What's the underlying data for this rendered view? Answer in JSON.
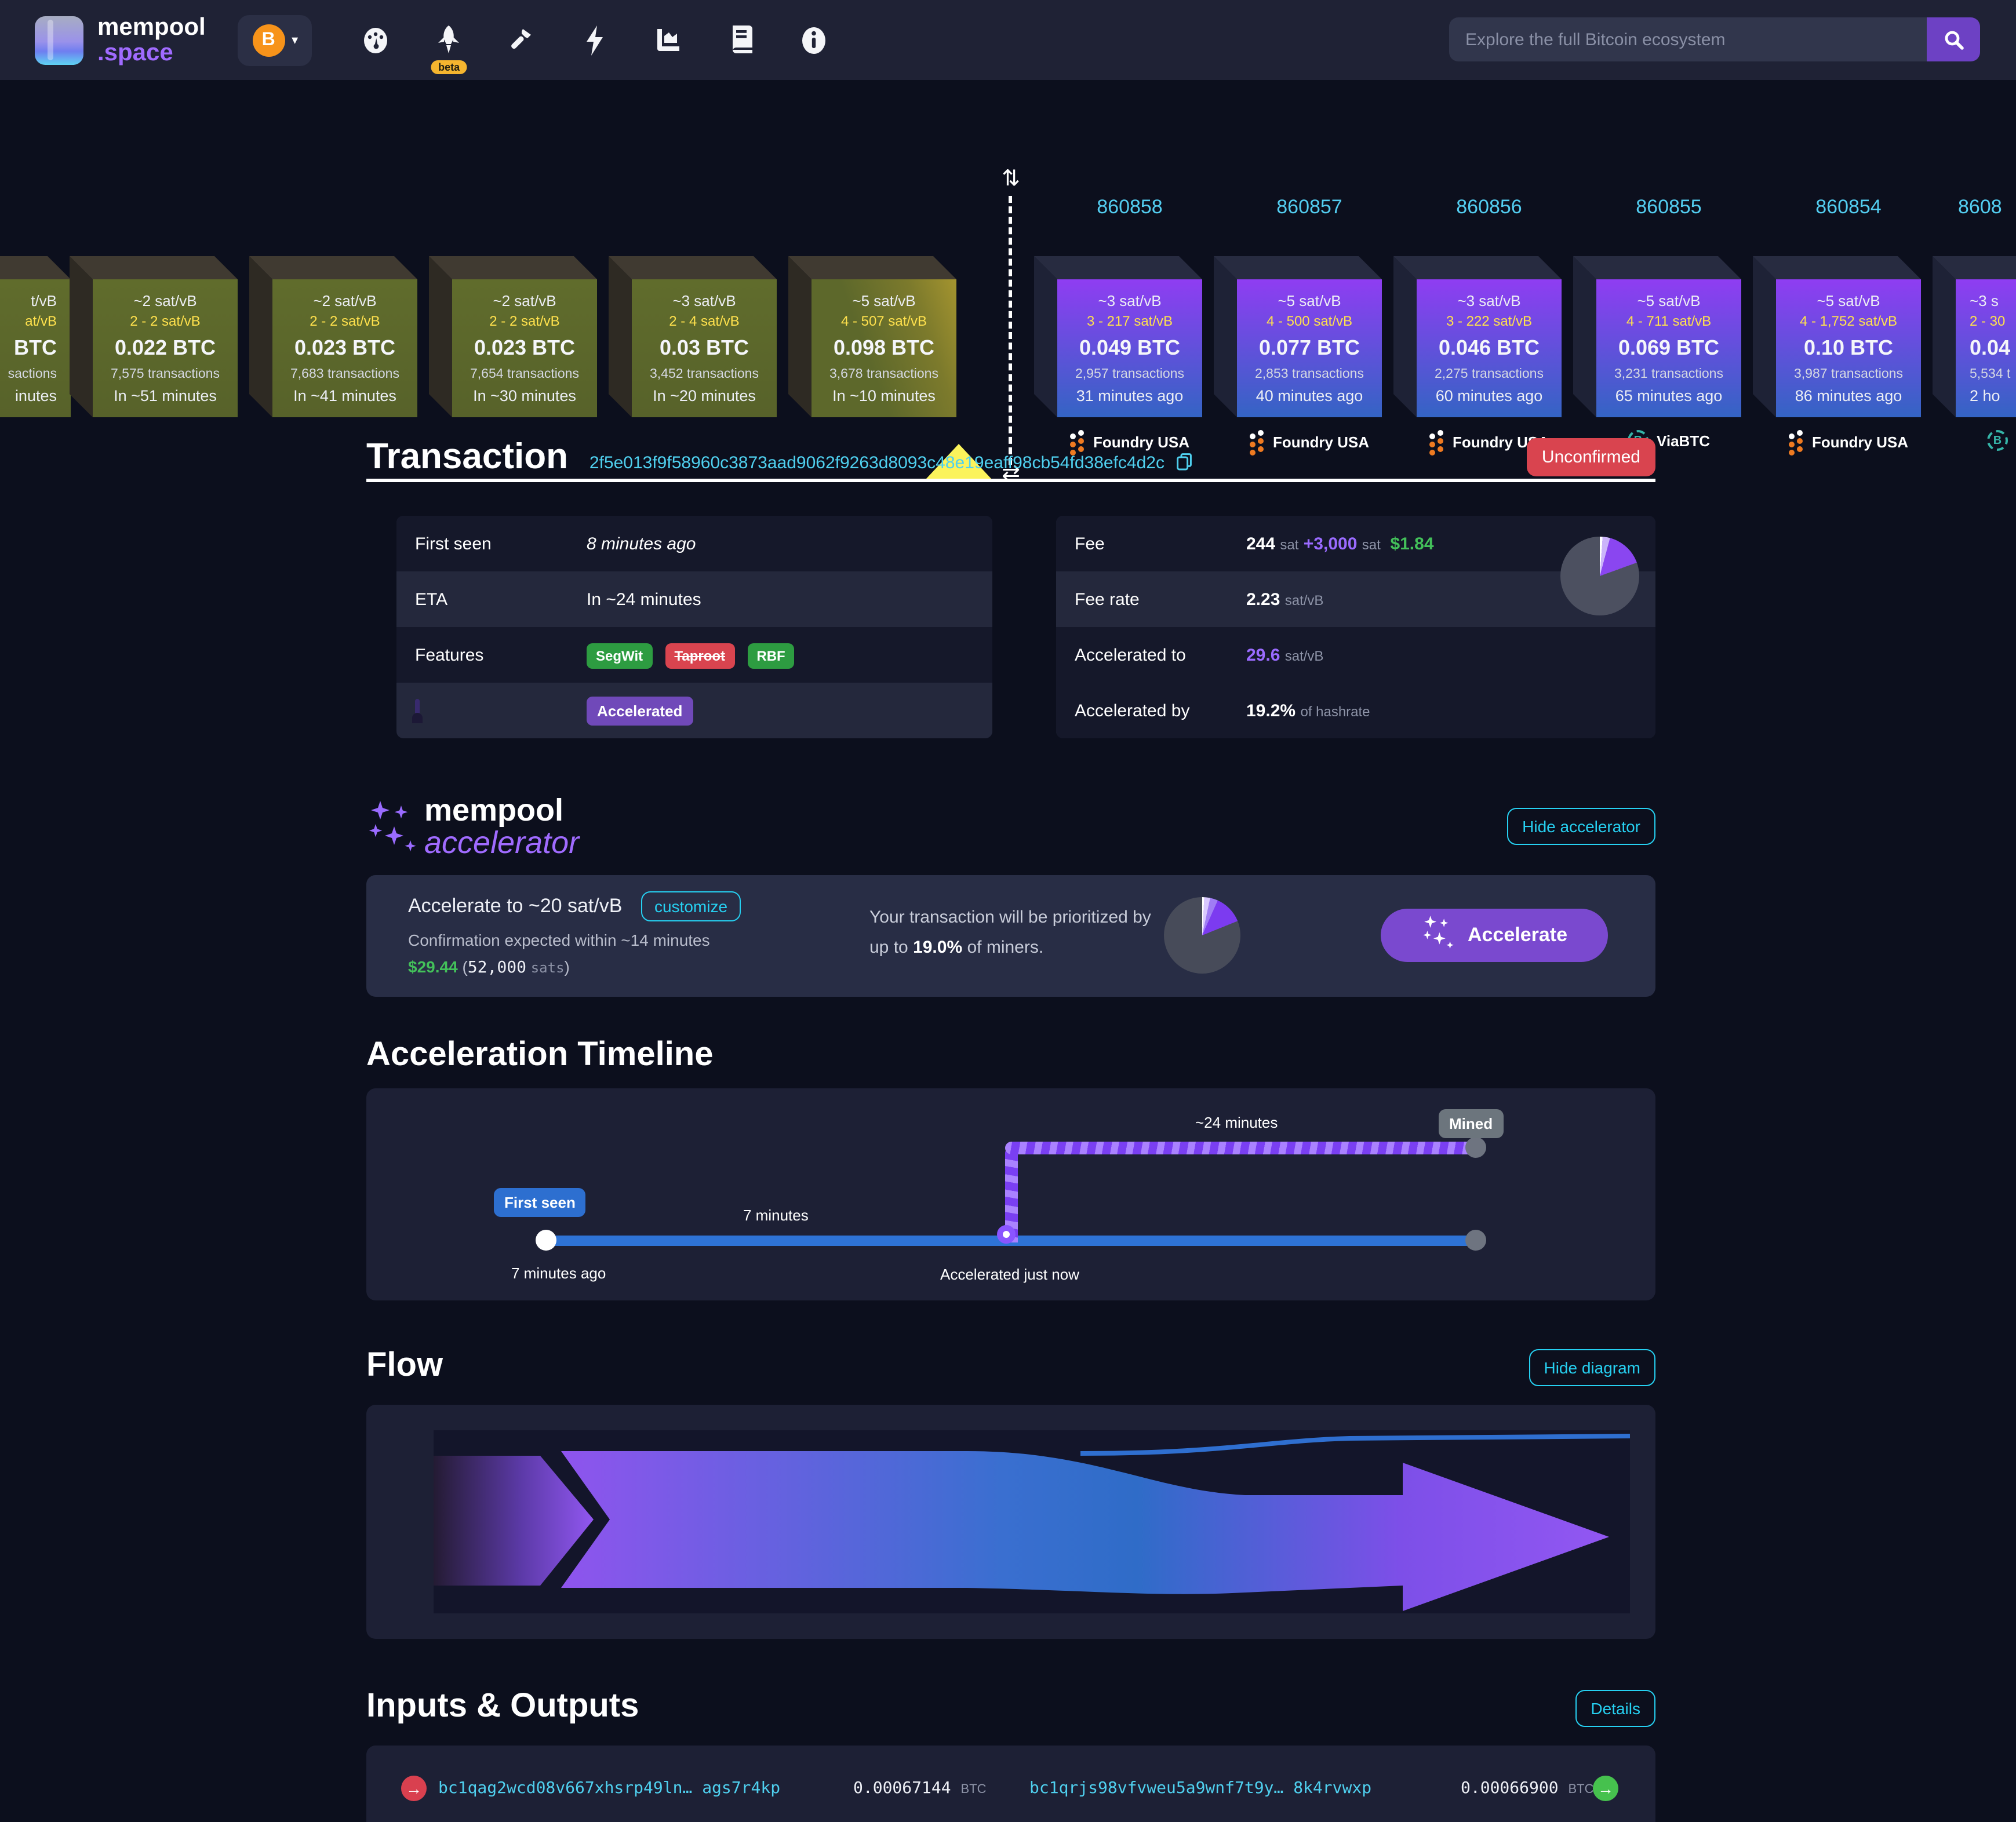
{
  "navbar": {
    "brand": {
      "top": "mempool",
      "bottom": ".space"
    },
    "network_symbol": "B",
    "beta_label": "beta",
    "nav_icons": [
      "gauge-icon",
      "rocket-icon",
      "hammer-icon",
      "lightning-icon",
      "chart-icon",
      "docs-icon",
      "info-icon"
    ],
    "search": {
      "placeholder": "Explore the full Bitcoin ecosystem"
    }
  },
  "blockchain": {
    "mempool_blocks": [
      {
        "median": "t/vB",
        "range": "at/vB",
        "size": "BTC",
        "txs": "sactions",
        "eta": "inutes"
      },
      {
        "median": "~2 sat/vB",
        "range": "2 - 2 sat/vB",
        "size": "0.022 BTC",
        "txs": "7,575 transactions",
        "eta": "In ~51 minutes"
      },
      {
        "median": "~2 sat/vB",
        "range": "2 - 2 sat/vB",
        "size": "0.023 BTC",
        "txs": "7,683 transactions",
        "eta": "In ~41 minutes"
      },
      {
        "median": "~2 sat/vB",
        "range": "2 - 2 sat/vB",
        "size": "0.023 BTC",
        "txs": "7,654 transactions",
        "eta": "In ~30 minutes"
      },
      {
        "median": "~3 sat/vB",
        "range": "2 - 4 sat/vB",
        "size": "0.03 BTC",
        "txs": "3,452 transactions",
        "eta": "In ~20 minutes"
      },
      {
        "median": "~5 sat/vB",
        "range": "4 - 507 sat/vB",
        "size": "0.098 BTC",
        "txs": "3,678 transactions",
        "eta": "In ~10 minutes"
      }
    ],
    "mined_blocks": [
      {
        "height": "860858",
        "median": "~3 sat/vB",
        "range": "3 - 217 sat/vB",
        "size": "0.049 BTC",
        "txs": "2,957 transactions",
        "time": "31 minutes ago",
        "pool": "Foundry USA",
        "pool_icon": "foundry"
      },
      {
        "height": "860857",
        "median": "~5 sat/vB",
        "range": "4 - 500 sat/vB",
        "size": "0.077 BTC",
        "txs": "2,853 transactions",
        "time": "40 minutes ago",
        "pool": "Foundry USA",
        "pool_icon": "foundry"
      },
      {
        "height": "860856",
        "median": "~3 sat/vB",
        "range": "3 - 222 sat/vB",
        "size": "0.046 BTC",
        "txs": "2,275 transactions",
        "time": "60 minutes ago",
        "pool": "Foundry USA",
        "pool_icon": "foundry"
      },
      {
        "height": "860855",
        "median": "~5 sat/vB",
        "range": "4 - 711 sat/vB",
        "size": "0.069 BTC",
        "txs": "3,231 transactions",
        "time": "65 minutes ago",
        "pool": "ViaBTC",
        "pool_icon": "viabtc"
      },
      {
        "height": "860854",
        "median": "~5 sat/vB",
        "range": "4 - 1,752 sat/vB",
        "size": "0.10 BTC",
        "txs": "3,987 transactions",
        "time": "86 minutes ago",
        "pool": "Foundry USA",
        "pool_icon": "foundry"
      },
      {
        "height": "8608",
        "median": "~3 s",
        "range": "2 - 30",
        "size": "0.04",
        "txs": "5,534 t",
        "time": "2 ho",
        "pool": "ViaBTC",
        "pool_icon": "viabtc"
      }
    ],
    "divider_icons": [
      "swap-vertical-icon",
      "swap-horizontal-icon"
    ]
  },
  "transaction": {
    "title": "Transaction",
    "txid": "2f5e013f9f58960c3873aad9062f9263d8093c48e19eaff98cb54fd38efc4d2c",
    "status": "Unconfirmed",
    "first_seen_label": "First seen",
    "first_seen": "8 minutes ago",
    "eta_label": "ETA",
    "eta": "In ~24 minutes",
    "features_label": "Features",
    "features": [
      {
        "label": "SegWit"
      },
      {
        "label": "Taproot"
      },
      {
        "label": "RBF"
      }
    ],
    "accelerated_badge": "Accelerated",
    "fee_label": "Fee",
    "fee_sat": "244",
    "fee_sat_unit": "sat",
    "fee_boost": "+3,000",
    "fee_boost_unit": "sat",
    "fee_usd": "$1.84",
    "fee_rate_label": "Fee rate",
    "fee_rate": "2.23",
    "fee_rate_unit": "sat/vB",
    "accelerated_to_label": "Accelerated to",
    "accelerated_to": "29.6",
    "accelerated_to_unit": "sat/vB",
    "accelerated_by_label": "Accelerated by",
    "accelerated_by": "19.2%",
    "accelerated_by_unit": "of hashrate"
  },
  "accelerator": {
    "logo_top": "mempool",
    "logo_bottom": "accelerator",
    "hide_button": "Hide accelerator",
    "rate_title": "Accelerate to ~20 sat/vB",
    "customize_button": "customize",
    "confirmation": "Confirmation expected within ~14 minutes",
    "price_usd": "$29.44",
    "price_open": "(",
    "price_sats": "52,000",
    "price_sats_unit": "sats",
    "price_close": ")",
    "prioritized_prefix": "Your transaction will be prioritized by up to ",
    "prioritized_pct": "19.0%",
    "prioritized_suffix": " of miners.",
    "accelerate_button": "Accelerate"
  },
  "timeline": {
    "heading": "Acceleration Timeline",
    "first_seen_badge": "First seen",
    "first_seen_time": "7 minutes ago",
    "elapsed": "7 minutes",
    "accelerated_label": "Accelerated just now",
    "eta_label": "~24 minutes",
    "mined_badge": "Mined"
  },
  "flow": {
    "heading": "Flow",
    "hide_button": "Hide diagram"
  },
  "io": {
    "heading": "Inputs & Outputs",
    "details_button": "Details",
    "input_addr_prefix": "bc1qag2wcd08v667xhsrp49ln…",
    "input_addr_suffix": "ags7r4kp",
    "input_value": "0.00067144",
    "btc_unit": "BTC",
    "output_addr_prefix": "bc1qrjs98vfvweu5a9wnf7t9y…",
    "output_addr_suffix": "8k4rvwxp",
    "output_value": "0.00066900",
    "change_badge_value": "0.00066900"
  },
  "colors": {
    "accent_purple": "#8457ff",
    "cyan_link": "#26d0f1",
    "green": "#43c05a",
    "yellow_range": "#ffe14d",
    "red_status": "#d9444f",
    "height_cyan": "#53cdf0",
    "mempool_block_green": "#5d682b",
    "mined_block_purple": "#8f3df2"
  }
}
